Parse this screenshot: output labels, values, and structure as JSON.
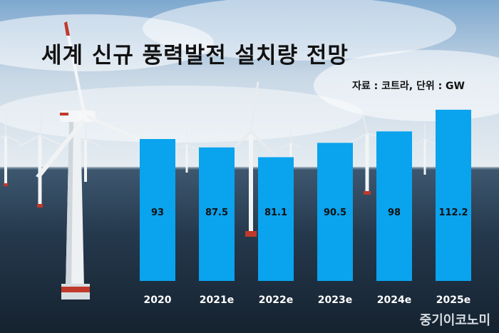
{
  "title": "세계 신규 풍력발전 설치량 전망",
  "source_note": "자료 : 코트라, 단위 : GW",
  "watermark": "중기이코노미",
  "colors": {
    "bar": "#0aa3ee",
    "label": "#111111",
    "sky_top": "#7fa9cf",
    "sea": "#1c3247"
  },
  "chart_data": {
    "type": "bar",
    "categories": [
      "2020",
      "2021e",
      "2022e",
      "2023e",
      "2024e",
      "2025e"
    ],
    "values": [
      93,
      87.5,
      81.1,
      90.5,
      98,
      112.2
    ],
    "value_labels": [
      "93",
      "87.5",
      "81.1",
      "90.5",
      "98",
      "112.2"
    ],
    "title": "세계 신규 풍력발전 설치량 전망",
    "xlabel": "",
    "ylabel": "",
    "unit": "GW",
    "grid": false,
    "legend": "none"
  }
}
